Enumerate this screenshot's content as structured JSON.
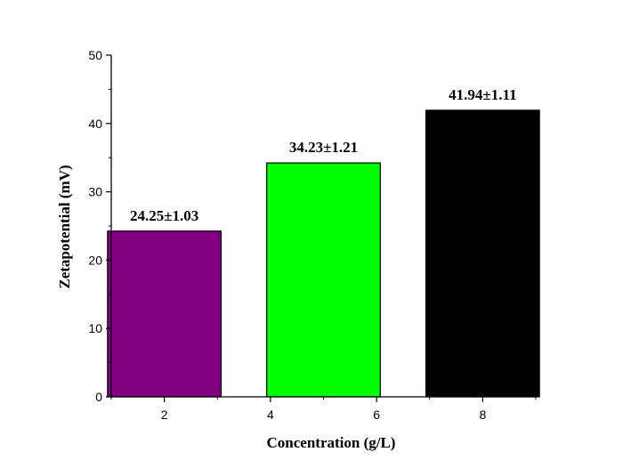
{
  "chart_data": {
    "type": "bar",
    "title": "",
    "xlabel": "Concentration (g/L)",
    "ylabel": "Zetapotential (mV)",
    "ylim": [
      0,
      50
    ],
    "yticks": [
      0,
      10,
      20,
      30,
      40,
      50
    ],
    "xlim": [
      1,
      9
    ],
    "xticks": [
      2,
      4,
      6,
      8
    ],
    "grid": false,
    "legend": "none",
    "bars": [
      {
        "x": 2,
        "value": 24.25,
        "label": "24.25±1.03",
        "color": "#800080"
      },
      {
        "x": 5,
        "value": 34.23,
        "label": "34.23±1.21",
        "color": "#00ff00"
      },
      {
        "x": 8,
        "value": 41.94,
        "label": "41.94±1.11",
        "color": "#000000"
      }
    ]
  }
}
